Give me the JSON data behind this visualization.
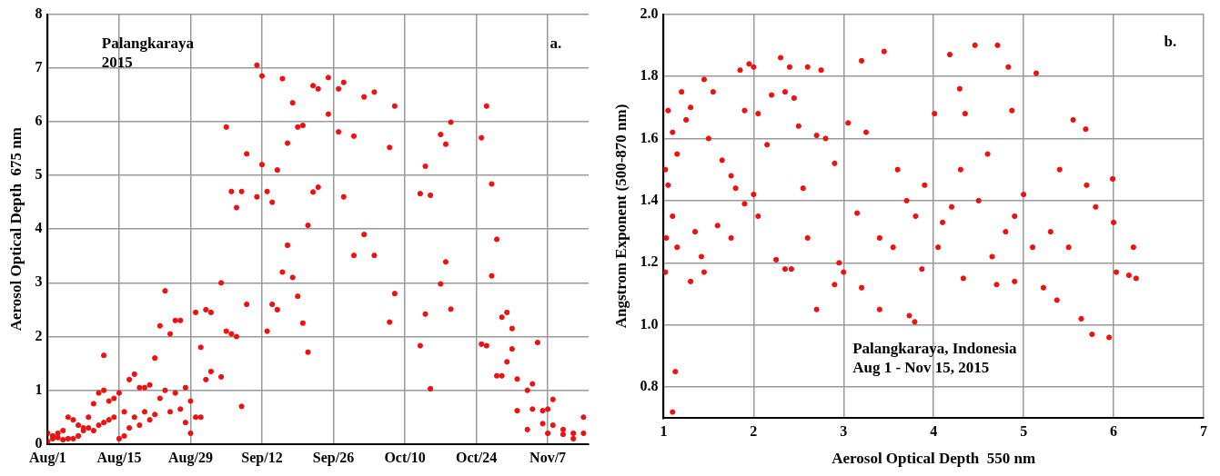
{
  "chart_data": [
    {
      "type": "scatter",
      "xlabel": null,
      "ylabel": "Aerosol Optical Depth  675 nm",
      "annotations": [
        "Palangkaraya\n2015",
        "a."
      ],
      "xlim": [
        "2015-08-01",
        "2015-11-15"
      ],
      "xticks": [
        {
          "value": "2015-08-01",
          "label": "Aug/1"
        },
        {
          "value": "2015-08-15",
          "label": "Aug/15"
        },
        {
          "value": "2015-08-29",
          "label": "Aug/29"
        },
        {
          "value": "2015-09-12",
          "label": "Sep/12"
        },
        {
          "value": "2015-09-26",
          "label": "Sep/26"
        },
        {
          "value": "2015-10-10",
          "label": "Oct/10"
        },
        {
          "value": "2015-10-24",
          "label": "Oct/24"
        },
        {
          "value": "2015-11-07",
          "label": "Nov/7"
        }
      ],
      "ylim": [
        0,
        8
      ],
      "yticks": [
        0,
        1,
        2,
        3,
        4,
        5,
        6,
        7,
        8
      ],
      "grid": true,
      "legend": false,
      "marker": "circle",
      "series": [
        {
          "color": "#ee1111",
          "x": [
            "2015-08-01",
            "2015-08-01",
            "2015-08-02",
            "2015-08-02",
            "2015-08-03",
            "2015-08-03",
            "2015-08-04",
            "2015-08-04",
            "2015-08-05",
            "2015-08-05",
            "2015-08-06",
            "2015-08-06",
            "2015-08-07",
            "2015-08-07",
            "2015-08-08",
            "2015-08-08",
            "2015-08-09",
            "2015-08-09",
            "2015-08-10",
            "2015-08-10",
            "2015-08-11",
            "2015-08-11",
            "2015-08-12",
            "2015-08-12",
            "2015-08-12",
            "2015-08-13",
            "2015-08-13",
            "2015-08-14",
            "2015-08-14",
            "2015-08-15",
            "2015-08-15",
            "2015-08-16",
            "2015-08-16",
            "2015-08-17",
            "2015-08-17",
            "2015-08-18",
            "2015-08-18",
            "2015-08-19",
            "2015-08-19",
            "2015-08-20",
            "2015-08-20",
            "2015-08-21",
            "2015-08-21",
            "2015-08-22",
            "2015-08-22",
            "2015-08-23",
            "2015-08-23",
            "2015-08-24",
            "2015-08-24",
            "2015-08-25",
            "2015-08-25",
            "2015-08-26",
            "2015-08-26",
            "2015-08-27",
            "2015-08-27",
            "2015-08-28",
            "2015-08-28",
            "2015-08-29",
            "2015-08-29",
            "2015-08-30",
            "2015-08-30",
            "2015-08-31",
            "2015-08-31",
            "2015-09-01",
            "2015-09-01",
            "2015-09-02",
            "2015-09-02",
            "2015-09-04",
            "2015-09-04",
            "2015-09-05",
            "2015-09-05",
            "2015-09-06",
            "2015-09-06",
            "2015-09-07",
            "2015-09-07",
            "2015-09-08",
            "2015-09-08",
            "2015-09-09",
            "2015-09-09",
            "2015-09-11",
            "2015-09-11",
            "2015-09-12",
            "2015-09-12",
            "2015-09-13",
            "2015-09-13",
            "2015-09-14",
            "2015-09-14",
            "2015-09-15",
            "2015-09-15",
            "2015-09-16",
            "2015-09-16",
            "2015-09-17",
            "2015-09-17",
            "2015-09-18",
            "2015-09-18",
            "2015-09-19",
            "2015-09-19",
            "2015-09-20",
            "2015-09-20",
            "2015-09-21",
            "2015-09-21",
            "2015-09-22",
            "2015-09-22",
            "2015-09-23",
            "2015-09-23",
            "2015-09-25",
            "2015-09-25",
            "2015-09-27",
            "2015-09-27",
            "2015-09-28",
            "2015-09-28",
            "2015-09-30",
            "2015-09-30",
            "2015-10-02",
            "2015-10-02",
            "2015-10-04",
            "2015-10-04",
            "2015-10-07",
            "2015-10-07",
            "2015-10-08",
            "2015-10-08",
            "2015-10-13",
            "2015-10-13",
            "2015-10-14",
            "2015-10-14",
            "2015-10-15",
            "2015-10-15",
            "2015-10-17",
            "2015-10-17",
            "2015-10-18",
            "2015-10-18",
            "2015-10-19",
            "2015-10-19",
            "2015-10-25",
            "2015-10-25",
            "2015-10-26",
            "2015-10-26",
            "2015-10-27",
            "2015-10-27",
            "2015-10-28",
            "2015-10-28",
            "2015-10-29",
            "2015-10-29",
            "2015-10-30",
            "2015-10-30",
            "2015-10-31",
            "2015-10-31",
            "2015-11-01",
            "2015-11-01",
            "2015-11-03",
            "2015-11-03",
            "2015-11-04",
            "2015-11-04",
            "2015-11-05",
            "2015-11-06",
            "2015-11-06",
            "2015-11-07",
            "2015-11-07",
            "2015-11-08",
            "2015-11-08",
            "2015-11-10",
            "2015-11-10",
            "2015-11-12",
            "2015-11-12",
            "2015-11-14",
            "2015-11-14"
          ],
          "values": [
            0.05,
            0.2,
            0.1,
            0.15,
            0.12,
            0.2,
            0.08,
            0.25,
            0.1,
            0.5,
            0.1,
            0.45,
            0.15,
            0.35,
            0.25,
            0.3,
            0.3,
            0.5,
            0.25,
            0.75,
            0.35,
            0.95,
            0.4,
            1.0,
            1.65,
            0.45,
            0.8,
            0.5,
            0.85,
            0.1,
            0.95,
            0.15,
            0.6,
            0.3,
            1.2,
            0.5,
            1.3,
            0.35,
            1.05,
            0.6,
            1.05,
            0.45,
            1.1,
            0.55,
            1.6,
            0.85,
            2.2,
            1.0,
            2.85,
            0.6,
            2.05,
            0.95,
            2.3,
            0.65,
            2.3,
            0.4,
            1.05,
            0.2,
            0.8,
            0.5,
            2.45,
            0.5,
            1.8,
            1.2,
            2.5,
            1.35,
            2.45,
            1.25,
            3.0,
            2.1,
            5.9,
            2.05,
            4.7,
            2.0,
            4.4,
            0.7,
            4.7,
            2.6,
            5.4,
            4.6,
            7.05,
            5.2,
            6.85,
            2.1,
            4.7,
            2.6,
            4.5,
            2.5,
            5.1,
            3.2,
            6.8,
            3.7,
            5.6,
            3.1,
            6.35,
            2.75,
            5.9,
            2.25,
            5.93,
            1.71,
            4.07,
            4.69,
            6.67,
            4.78,
            6.61,
            6.14,
            6.82,
            5.81,
            6.61,
            4.6,
            6.73,
            3.51,
            5.73,
            3.9,
            6.46,
            3.51,
            6.55,
            2.27,
            5.52,
            2.8,
            6.29,
            1.83,
            4.66,
            2.42,
            5.17,
            1.03,
            4.63,
            2.98,
            5.76,
            3.39,
            5.58,
            2.51,
            5.99,
            1.86,
            5.7,
            1.83,
            6.29,
            3.13,
            4.84,
            1.27,
            3.81,
            1.27,
            2.36,
            1.53,
            2.45,
            1.77,
            2.15,
            0.62,
            1.21,
            0.27,
            1.0,
            0.65,
            1.12,
            1.89,
            0.38,
            0.62,
            0.2,
            0.65,
            0.35,
            0.83,
            0.18,
            0.27,
            0.1,
            0.2,
            0.2,
            0.5
          ]
        }
      ]
    },
    {
      "type": "scatter",
      "xlabel": "Aerosol Optical Depth  550 nm",
      "ylabel": "Angstrom Exponent (500-870 nm)",
      "annotations": [
        "b.",
        "Palangkaraya, Indonesia\nAug 1 - Nov 15, 2015"
      ],
      "xlim": [
        1,
        7
      ],
      "xticks": [
        1,
        2,
        3,
        4,
        5,
        6,
        7
      ],
      "ylim": [
        0.7,
        2.0
      ],
      "yticks": [
        0.8,
        {
          "value": 1,
          "label": "1.0"
        },
        1.2,
        1.4,
        1.6,
        1.8,
        {
          "value": 2,
          "label": "2.0"
        }
      ],
      "grid": true,
      "legend": false,
      "marker": "circle",
      "series": [
        {
          "color": "#ee1111",
          "x": [
            1.05,
            1.1,
            1.2,
            1.25,
            1.15,
            1.02,
            1.05,
            1.1,
            1.03,
            1.02,
            1.13,
            1.1,
            1.15,
            1.3,
            1.45,
            1.42,
            1.35,
            1.3,
            1.45,
            1.5,
            1.55,
            1.65,
            1.6,
            1.75,
            1.75,
            1.8,
            1.85,
            1.95,
            2.0,
            1.9,
            2.05,
            2.0,
            1.9,
            2.05,
            2.15,
            2.3,
            2.4,
            2.6,
            2.75,
            2.5,
            2.7,
            2.8,
            2.35,
            2.2,
            2.45,
            2.55,
            2.25,
            2.35,
            2.42,
            2.6,
            2.7,
            2.9,
            2.95,
            3.0,
            3.05,
            2.9,
            3.15,
            3.2,
            3.2,
            3.25,
            3.4,
            3.45,
            3.4,
            4.18,
            4.46,
            4.71,
            4.83,
            5.14,
            4.29,
            4.01,
            4.35,
            4.87,
            5.55,
            5.69,
            5.0,
            4.2,
            4.5,
            3.9,
            4.1,
            5.99,
            6.0,
            6.22,
            6.25,
            6.17,
            6.03,
            5.64,
            5.76,
            5.95,
            5.37,
            4.7,
            4.9,
            5.22,
            3.79,
            3.73,
            3.87,
            4.33,
            5.4,
            5.7,
            4.6,
            4.3,
            3.6,
            3.8,
            4.8,
            5.3,
            5.5,
            5.1,
            4.9,
            5.8,
            3.55,
            3.7,
            4.05,
            4.65
          ],
          "values": [
            1.69,
            1.62,
            1.75,
            1.66,
            1.55,
            1.5,
            1.45,
            1.35,
            1.28,
            1.17,
            0.85,
            0.72,
            1.25,
            1.14,
            1.17,
            1.22,
            1.3,
            1.7,
            1.79,
            1.6,
            1.75,
            1.53,
            1.32,
            1.28,
            1.48,
            1.44,
            1.82,
            1.84,
            1.83,
            1.69,
            1.68,
            1.42,
            1.39,
            1.35,
            1.58,
            1.86,
            1.83,
            1.83,
            1.82,
            1.64,
            1.61,
            1.6,
            1.75,
            1.74,
            1.73,
            1.44,
            1.21,
            1.18,
            1.18,
            1.28,
            1.05,
            1.13,
            1.2,
            1.17,
            1.65,
            1.52,
            1.36,
            1.12,
            1.85,
            1.62,
            1.28,
            1.88,
            1.05,
            1.87,
            1.9,
            1.9,
            1.83,
            1.81,
            1.76,
            1.68,
            1.68,
            1.69,
            1.66,
            1.63,
            1.42,
            1.38,
            1.4,
            1.45,
            1.33,
            1.47,
            1.33,
            1.25,
            1.15,
            1.16,
            1.17,
            1.02,
            0.97,
            0.96,
            1.08,
            1.13,
            1.14,
            1.12,
            1.01,
            1.03,
            1.18,
            1.15,
            1.5,
            1.45,
            1.55,
            1.5,
            1.5,
            1.35,
            1.3,
            1.3,
            1.25,
            1.25,
            1.35,
            1.38,
            1.25,
            1.4,
            1.25,
            1.22
          ]
        }
      ]
    }
  ]
}
